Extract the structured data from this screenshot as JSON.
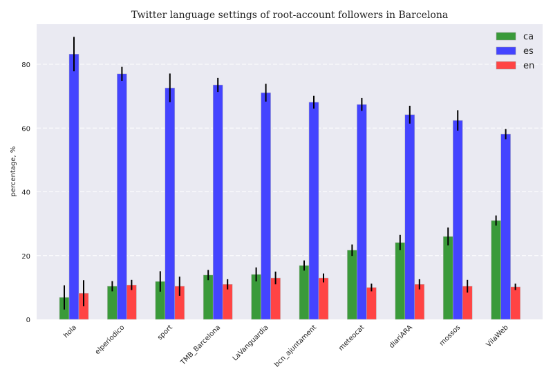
{
  "chart_data": {
    "type": "bar",
    "title": "Twitter language settings of root-account followers in Barcelona",
    "xlabel": "",
    "ylabel": "percentage, %",
    "ylim": [
      0,
      93
    ],
    "yticks": [
      0,
      20,
      40,
      60,
      80
    ],
    "grid": true,
    "legend_position": "top-right",
    "categories": [
      "hola",
      "elperiodico",
      "sport",
      "TMB_Barcelona",
      "LaVanguardia",
      "bcn_ajuntament",
      "meteocat",
      "diariARA",
      "mossos",
      "VilaWeb"
    ],
    "series": [
      {
        "name": "ca",
        "color": "#3a9a3a",
        "values": [
          6.9,
          10.4,
          11.9,
          13.9,
          14.1,
          16.9,
          21.7,
          24.1,
          26.0,
          31.0
        ],
        "errors": [
          3.8,
          1.6,
          3.2,
          1.6,
          2.2,
          1.6,
          1.8,
          2.4,
          2.8,
          1.6
        ]
      },
      {
        "name": "es",
        "color": "#4444ff",
        "values": [
          83.2,
          77.0,
          72.6,
          73.5,
          71.1,
          68.1,
          67.4,
          64.2,
          62.4,
          58.1
        ],
        "errors": [
          5.4,
          2.2,
          4.5,
          2.2,
          2.8,
          2.0,
          2.0,
          2.8,
          3.2,
          1.6
        ]
      },
      {
        "name": "en",
        "color": "#ff4444",
        "values": [
          8.2,
          10.8,
          10.4,
          11.0,
          13.0,
          13.0,
          10.0,
          11.0,
          10.4,
          10.2
        ],
        "errors": [
          4.1,
          1.6,
          3.0,
          1.6,
          2.0,
          1.4,
          1.2,
          1.6,
          2.0,
          1.0
        ]
      }
    ]
  }
}
